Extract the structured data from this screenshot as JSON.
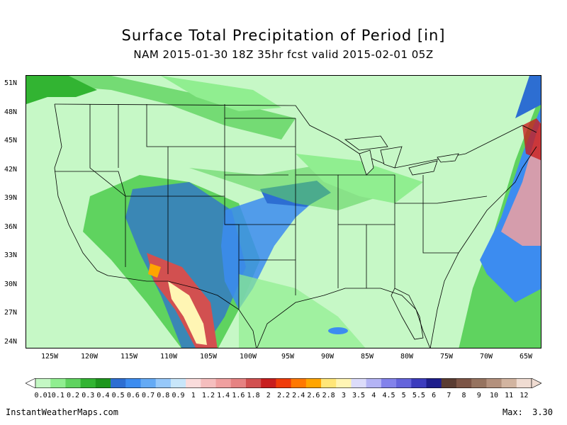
{
  "map": {
    "title": "Surface Total Precipitation of Period [in]",
    "subtitle": "NAM 2015-01-30 18Z 35hr fcst valid 2015-02-01 05Z",
    "lat_labels": [
      "51N",
      "48N",
      "45N",
      "42N",
      "39N",
      "36N",
      "33N",
      "30N",
      "27N",
      "24N"
    ],
    "lon_labels": [
      "125W",
      "120W",
      "115W",
      "110W",
      "105W",
      "100W",
      "95W",
      "90W",
      "85W",
      "80W",
      "75W",
      "70W",
      "65W"
    ],
    "colorbar": {
      "labels": [
        "0.01",
        "0.1",
        "0.2",
        "0.3",
        "0.4",
        "0.5",
        "0.6",
        "0.7",
        "0.8",
        "0.9",
        "1",
        "1.2",
        "1.4",
        "1.6",
        "1.8",
        "2",
        "2.2",
        "2.4",
        "2.6",
        "2.8",
        "3",
        "3.5",
        "4",
        "4.5",
        "5",
        "5.5",
        "6",
        "7",
        "8",
        "9",
        "10",
        "11",
        "12"
      ],
      "colors": [
        "#c4f7c4",
        "#90ee90",
        "#5fd35f",
        "#32b432",
        "#1e961e",
        "#2d6ed2",
        "#3c8cf0",
        "#64aaf5",
        "#96c8fa",
        "#c8e6fa",
        "#fadcdc",
        "#f5bebe",
        "#f0a0a0",
        "#e68282",
        "#d25050",
        "#c81e1e",
        "#f03c0a",
        "#ff7800",
        "#ffa500",
        "#ffe678",
        "#fff5b4",
        "#dcdcfa",
        "#b4b4f5",
        "#8282eb",
        "#6464dc",
        "#3c3cbe",
        "#1e1e8c",
        "#5a3c32",
        "#7d5546",
        "#96735f",
        "#b4917d",
        "#d2b4a0",
        "#f0dcd2"
      ]
    }
  },
  "footer": {
    "site": "InstantWeatherMaps.com",
    "max_label": "Max:",
    "max_value": "3.30"
  }
}
